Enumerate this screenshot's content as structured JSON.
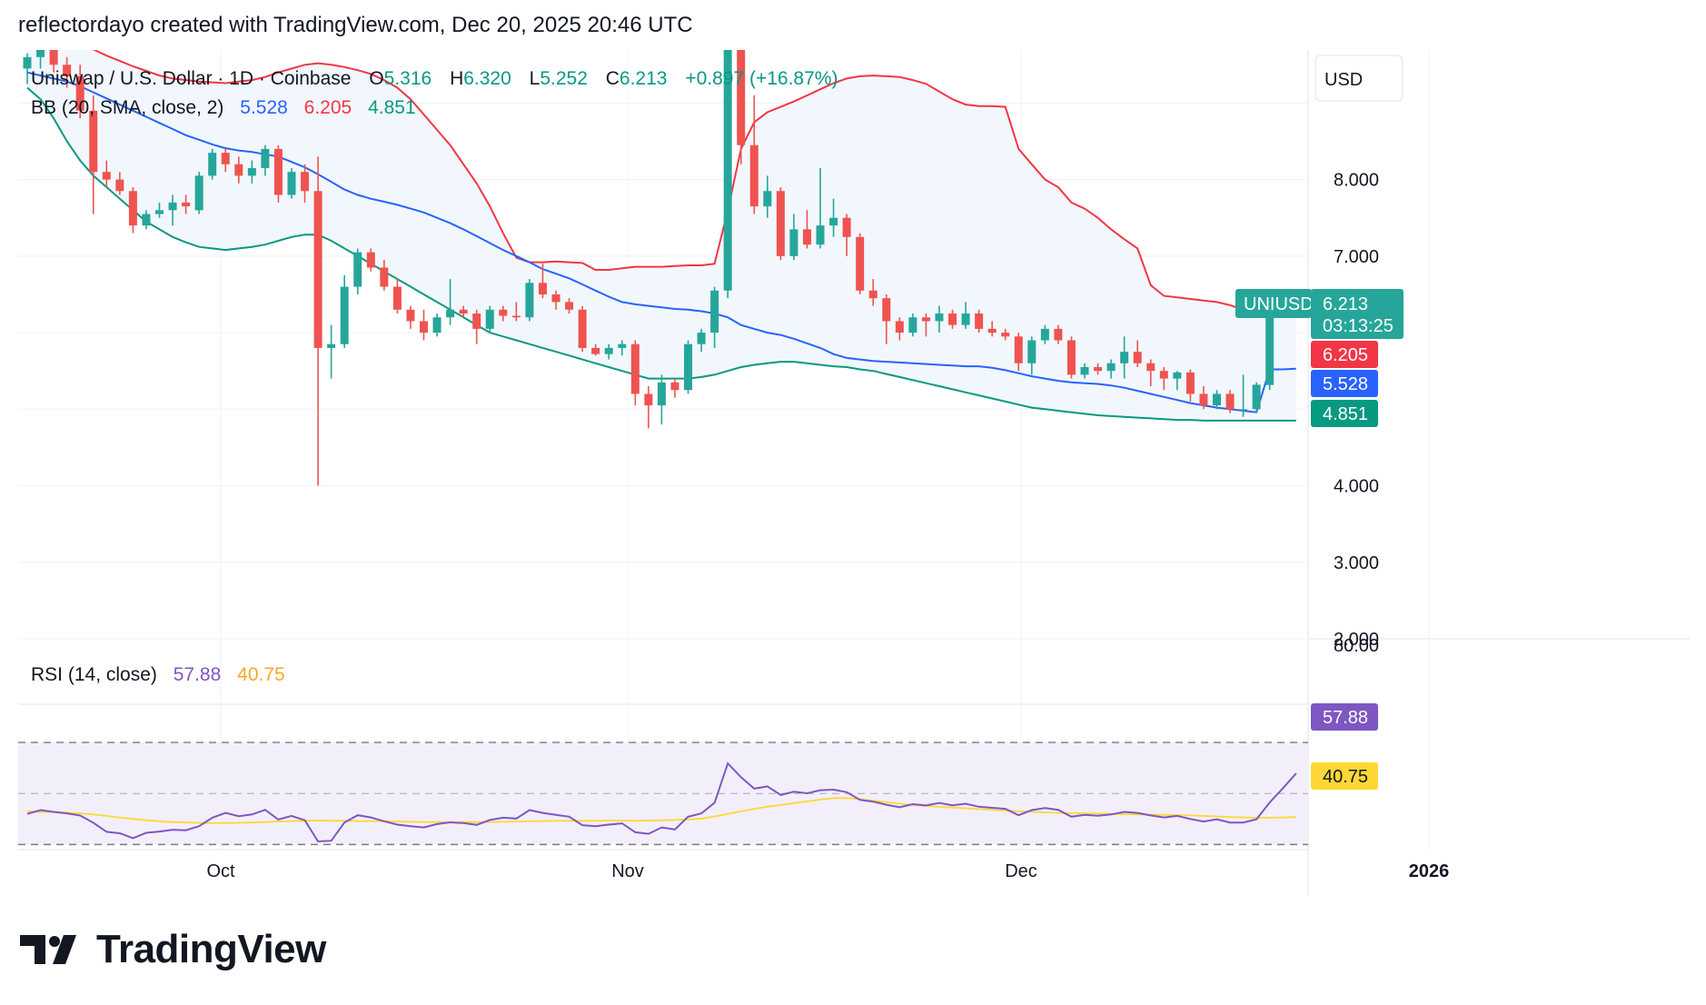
{
  "header": {
    "attribution": "reflectordayo created with TradingView.com, Dec 20, 2025 20:46 UTC"
  },
  "legend": {
    "symbol": "Uniswap / U.S. Dollar · 1D · Coinbase",
    "open_label": "O",
    "open": "5.316",
    "high_label": "H",
    "high": "6.320",
    "low_label": "L",
    "low": "5.252",
    "close_label": "C",
    "close": "6.213",
    "change": "+0.897 (+16.87%)",
    "bb_label": "BB (20, SMA, close, 2)",
    "bb_basis": "5.528",
    "bb_upper": "6.205",
    "bb_lower": "4.851",
    "rsi_label": "RSI (14, close)",
    "rsi_value": "57.88",
    "rsi_ma": "40.75"
  },
  "price_axis": {
    "currency": "USD",
    "ticks": [
      "8.000",
      "7.000",
      "4.000",
      "3.000",
      "2.000"
    ]
  },
  "rsi_axis": {
    "ticks": [
      "80.00"
    ]
  },
  "badges": {
    "symbol": "UNIUSD",
    "last_price": "6.213",
    "countdown": "03:13:25",
    "bb_upper": "6.205",
    "bb_basis": "5.528",
    "bb_lower": "4.851",
    "rsi": "57.88",
    "rsi_ma": "40.75"
  },
  "time_axis": {
    "labels": [
      "Oct",
      "Nov",
      "Dec",
      "2026"
    ]
  },
  "colors": {
    "up": "#26a69a",
    "down": "#ef5350",
    "bb_upper": "#f23645",
    "bb_basis": "#2962ff",
    "bb_lower": "#089981",
    "bb_fill": "#f1f7fd",
    "rsi": "#7e57c2",
    "rsi_ma": "#fdd835",
    "rsi_band": "#f3effa"
  },
  "brand": {
    "name": "TradingView"
  },
  "chart_data": {
    "type": "candlestick",
    "symbol": "UNIUSD",
    "ylim": [
      2,
      9.8
    ],
    "candles": [
      {
        "o": 9.45,
        "h": 9.65,
        "l": 9.25,
        "c": 9.6
      },
      {
        "o": 9.6,
        "h": 9.8,
        "l": 9.45,
        "c": 9.7
      },
      {
        "o": 9.7,
        "h": 9.85,
        "l": 9.4,
        "c": 9.5
      },
      {
        "o": 9.5,
        "h": 9.6,
        "l": 9.2,
        "c": 9.35
      },
      {
        "o": 9.35,
        "h": 9.5,
        "l": 8.8,
        "c": 8.9
      },
      {
        "o": 8.9,
        "h": 9.1,
        "l": 7.55,
        "c": 8.1
      },
      {
        "o": 8.1,
        "h": 8.25,
        "l": 7.9,
        "c": 8.0
      },
      {
        "o": 8.0,
        "h": 8.1,
        "l": 7.8,
        "c": 7.85
      },
      {
        "o": 7.85,
        "h": 7.9,
        "l": 7.3,
        "c": 7.4
      },
      {
        "o": 7.4,
        "h": 7.6,
        "l": 7.35,
        "c": 7.55
      },
      {
        "o": 7.55,
        "h": 7.7,
        "l": 7.5,
        "c": 7.6
      },
      {
        "o": 7.6,
        "h": 7.8,
        "l": 7.4,
        "c": 7.7
      },
      {
        "o": 7.7,
        "h": 7.8,
        "l": 7.55,
        "c": 7.65
      },
      {
        "o": 7.6,
        "h": 8.1,
        "l": 7.55,
        "c": 8.05
      },
      {
        "o": 8.05,
        "h": 8.4,
        "l": 8.0,
        "c": 8.35
      },
      {
        "o": 8.35,
        "h": 8.4,
        "l": 8.1,
        "c": 8.2
      },
      {
        "o": 8.2,
        "h": 8.3,
        "l": 7.95,
        "c": 8.05
      },
      {
        "o": 8.05,
        "h": 8.25,
        "l": 7.95,
        "c": 8.15
      },
      {
        "o": 8.15,
        "h": 8.45,
        "l": 8.05,
        "c": 8.4
      },
      {
        "o": 8.4,
        "h": 8.45,
        "l": 7.7,
        "c": 7.8
      },
      {
        "o": 7.8,
        "h": 8.15,
        "l": 7.75,
        "c": 8.1
      },
      {
        "o": 8.1,
        "h": 8.2,
        "l": 7.7,
        "c": 7.85
      },
      {
        "o": 7.85,
        "h": 8.3,
        "l": 4.0,
        "c": 5.8
      },
      {
        "o": 5.8,
        "h": 6.1,
        "l": 5.4,
        "c": 5.85
      },
      {
        "o": 5.85,
        "h": 6.75,
        "l": 5.8,
        "c": 6.6
      },
      {
        "o": 6.6,
        "h": 7.1,
        "l": 6.5,
        "c": 7.05
      },
      {
        "o": 7.05,
        "h": 7.1,
        "l": 6.8,
        "c": 6.85
      },
      {
        "o": 6.85,
        "h": 6.95,
        "l": 6.55,
        "c": 6.6
      },
      {
        "o": 6.6,
        "h": 6.7,
        "l": 6.25,
        "c": 6.3
      },
      {
        "o": 6.3,
        "h": 6.35,
        "l": 6.05,
        "c": 6.15
      },
      {
        "o": 6.15,
        "h": 6.3,
        "l": 5.9,
        "c": 6.0
      },
      {
        "o": 6.0,
        "h": 6.25,
        "l": 5.95,
        "c": 6.2
      },
      {
        "o": 6.2,
        "h": 6.7,
        "l": 6.1,
        "c": 6.3
      },
      {
        "o": 6.3,
        "h": 6.35,
        "l": 6.2,
        "c": 6.25
      },
      {
        "o": 6.25,
        "h": 6.3,
        "l": 5.85,
        "c": 6.05
      },
      {
        "o": 6.05,
        "h": 6.35,
        "l": 6.0,
        "c": 6.3
      },
      {
        "o": 6.3,
        "h": 6.35,
        "l": 6.15,
        "c": 6.22
      },
      {
        "o": 6.22,
        "h": 6.4,
        "l": 6.15,
        "c": 6.2
      },
      {
        "o": 6.2,
        "h": 6.7,
        "l": 6.15,
        "c": 6.65
      },
      {
        "o": 6.65,
        "h": 6.9,
        "l": 6.45,
        "c": 6.5
      },
      {
        "o": 6.5,
        "h": 6.55,
        "l": 6.3,
        "c": 6.4
      },
      {
        "o": 6.4,
        "h": 6.45,
        "l": 6.25,
        "c": 6.3
      },
      {
        "o": 6.3,
        "h": 6.35,
        "l": 5.75,
        "c": 5.8
      },
      {
        "o": 5.8,
        "h": 5.85,
        "l": 5.7,
        "c": 5.72
      },
      {
        "o": 5.72,
        "h": 5.85,
        "l": 5.65,
        "c": 5.8
      },
      {
        "o": 5.8,
        "h": 5.9,
        "l": 5.7,
        "c": 5.85
      },
      {
        "o": 5.85,
        "h": 5.9,
        "l": 5.05,
        "c": 5.2
      },
      {
        "o": 5.2,
        "h": 5.3,
        "l": 4.75,
        "c": 5.05
      },
      {
        "o": 5.05,
        "h": 5.45,
        "l": 4.8,
        "c": 5.35
      },
      {
        "o": 5.35,
        "h": 5.4,
        "l": 5.15,
        "c": 5.25
      },
      {
        "o": 5.25,
        "h": 5.9,
        "l": 5.2,
        "c": 5.85
      },
      {
        "o": 5.85,
        "h": 6.05,
        "l": 5.75,
        "c": 6.0
      },
      {
        "o": 6.0,
        "h": 6.6,
        "l": 5.8,
        "c": 6.55
      },
      {
        "o": 6.55,
        "h": 10.0,
        "l": 6.45,
        "c": 9.8
      },
      {
        "o": 9.8,
        "h": 10.0,
        "l": 8.2,
        "c": 8.45
      },
      {
        "o": 8.45,
        "h": 9.1,
        "l": 7.55,
        "c": 7.65
      },
      {
        "o": 7.65,
        "h": 8.05,
        "l": 7.5,
        "c": 7.85
      },
      {
        "o": 7.85,
        "h": 7.9,
        "l": 6.95,
        "c": 7.0
      },
      {
        "o": 7.0,
        "h": 7.55,
        "l": 6.95,
        "c": 7.35
      },
      {
        "o": 7.35,
        "h": 7.6,
        "l": 7.1,
        "c": 7.15
      },
      {
        "o": 7.15,
        "h": 8.15,
        "l": 7.1,
        "c": 7.4
      },
      {
        "o": 7.4,
        "h": 7.75,
        "l": 7.25,
        "c": 7.5
      },
      {
        "o": 7.5,
        "h": 7.55,
        "l": 7.0,
        "c": 7.25
      },
      {
        "o": 7.25,
        "h": 7.3,
        "l": 6.5,
        "c": 6.55
      },
      {
        "o": 6.55,
        "h": 6.7,
        "l": 6.35,
        "c": 6.45
      },
      {
        "o": 6.45,
        "h": 6.5,
        "l": 5.85,
        "c": 6.15
      },
      {
        "o": 6.15,
        "h": 6.2,
        "l": 5.9,
        "c": 6.0
      },
      {
        "o": 6.0,
        "h": 6.25,
        "l": 5.95,
        "c": 6.2
      },
      {
        "o": 6.2,
        "h": 6.25,
        "l": 5.95,
        "c": 6.15
      },
      {
        "o": 6.15,
        "h": 6.35,
        "l": 6.0,
        "c": 6.25
      },
      {
        "o": 6.25,
        "h": 6.3,
        "l": 6.05,
        "c": 6.1
      },
      {
        "o": 6.1,
        "h": 6.4,
        "l": 6.05,
        "c": 6.25
      },
      {
        "o": 6.25,
        "h": 6.3,
        "l": 6.0,
        "c": 6.05
      },
      {
        "o": 6.05,
        "h": 6.15,
        "l": 5.95,
        "c": 6.0
      },
      {
        "o": 6.0,
        "h": 6.05,
        "l": 5.9,
        "c": 5.95
      },
      {
        "o": 5.95,
        "h": 6.0,
        "l": 5.5,
        "c": 5.6
      },
      {
        "o": 5.6,
        "h": 5.95,
        "l": 5.45,
        "c": 5.9
      },
      {
        "o": 5.9,
        "h": 6.1,
        "l": 5.85,
        "c": 6.05
      },
      {
        "o": 6.05,
        "h": 6.1,
        "l": 5.85,
        "c": 5.9
      },
      {
        "o": 5.9,
        "h": 5.95,
        "l": 5.4,
        "c": 5.45
      },
      {
        "o": 5.45,
        "h": 5.6,
        "l": 5.4,
        "c": 5.55
      },
      {
        "o": 5.55,
        "h": 5.6,
        "l": 5.45,
        "c": 5.5
      },
      {
        "o": 5.5,
        "h": 5.65,
        "l": 5.4,
        "c": 5.6
      },
      {
        "o": 5.6,
        "h": 5.95,
        "l": 5.4,
        "c": 5.75
      },
      {
        "o": 5.75,
        "h": 5.9,
        "l": 5.55,
        "c": 5.6
      },
      {
        "o": 5.6,
        "h": 5.65,
        "l": 5.3,
        "c": 5.5
      },
      {
        "o": 5.5,
        "h": 5.55,
        "l": 5.25,
        "c": 5.4
      },
      {
        "o": 5.4,
        "h": 5.5,
        "l": 5.25,
        "c": 5.48
      },
      {
        "o": 5.48,
        "h": 5.52,
        "l": 5.1,
        "c": 5.2
      },
      {
        "o": 5.2,
        "h": 5.3,
        "l": 5.0,
        "c": 5.05
      },
      {
        "o": 5.05,
        "h": 5.25,
        "l": 5.0,
        "c": 5.2
      },
      {
        "o": 5.2,
        "h": 5.25,
        "l": 4.95,
        "c": 5.0
      },
      {
        "o": 5.0,
        "h": 5.45,
        "l": 4.9,
        "c": 5.0
      },
      {
        "o": 5.0,
        "h": 5.35,
        "l": 4.95,
        "c": 5.32
      },
      {
        "o": 5.316,
        "h": 6.32,
        "l": 5.252,
        "c": 6.213
      }
    ],
    "bb_upper": [
      10.0,
      9.96,
      9.9,
      9.85,
      9.78,
      9.7,
      9.62,
      9.55,
      9.48,
      9.42,
      9.36,
      9.32,
      9.3,
      9.28,
      9.27,
      9.26,
      9.28,
      9.3,
      9.34,
      9.4,
      9.45,
      9.5,
      9.52,
      9.5,
      9.47,
      9.43,
      9.38,
      9.3,
      9.2,
      9.05,
      8.85,
      8.65,
      8.45,
      8.2,
      7.95,
      7.65,
      7.3,
      6.98,
      6.92,
      6.92,
      6.93,
      6.92,
      6.91,
      6.82,
      6.82,
      6.84,
      6.86,
      6.86,
      6.86,
      6.87,
      6.88,
      6.88,
      6.9,
      7.6,
      8.4,
      8.75,
      8.88,
      8.95,
      9.02,
      9.1,
      9.18,
      9.26,
      9.32,
      9.35,
      9.36,
      9.35,
      9.34,
      9.3,
      9.25,
      9.15,
      9.05,
      8.98,
      8.96,
      8.96,
      8.95,
      8.4,
      8.2,
      8.0,
      7.9,
      7.7,
      7.62,
      7.5,
      7.35,
      7.22,
      7.1,
      6.62,
      6.48,
      6.46,
      6.44,
      6.42,
      6.4,
      6.36,
      6.3,
      6.26,
      6.21,
      6.21,
      6.205
    ],
    "bb_basis": [
      9.4,
      9.36,
      9.32,
      9.28,
      9.22,
      9.14,
      9.06,
      8.98,
      8.9,
      8.82,
      8.74,
      8.66,
      8.58,
      8.52,
      8.46,
      8.41,
      8.38,
      8.36,
      8.33,
      8.3,
      8.23,
      8.16,
      8.07,
      7.97,
      7.87,
      7.8,
      7.75,
      7.71,
      7.67,
      7.62,
      7.57,
      7.5,
      7.43,
      7.35,
      7.26,
      7.17,
      7.08,
      7.0,
      6.92,
      6.83,
      6.77,
      6.71,
      6.63,
      6.55,
      6.47,
      6.4,
      6.37,
      6.35,
      6.33,
      6.31,
      6.3,
      6.28,
      6.25,
      6.2,
      6.1,
      6.05,
      6.0,
      5.97,
      5.92,
      5.86,
      5.8,
      5.72,
      5.67,
      5.65,
      5.63,
      5.62,
      5.61,
      5.6,
      5.59,
      5.58,
      5.57,
      5.56,
      5.56,
      5.54,
      5.51,
      5.47,
      5.43,
      5.4,
      5.37,
      5.35,
      5.34,
      5.33,
      5.31,
      5.28,
      5.24,
      5.2,
      5.16,
      5.12,
      5.08,
      5.05,
      5.02,
      5.0,
      4.98,
      4.96,
      5.52,
      5.52,
      5.528
    ],
    "bb_lower": [
      9.2,
      9.05,
      8.8,
      8.5,
      8.25,
      8.05,
      7.9,
      7.75,
      7.6,
      7.45,
      7.35,
      7.25,
      7.18,
      7.12,
      7.1,
      7.08,
      7.1,
      7.12,
      7.15,
      7.2,
      7.25,
      7.28,
      7.28,
      7.2,
      7.1,
      7.0,
      6.9,
      6.8,
      6.7,
      6.6,
      6.5,
      6.4,
      6.3,
      6.2,
      6.1,
      6.0,
      5.95,
      5.9,
      5.85,
      5.8,
      5.75,
      5.7,
      5.65,
      5.6,
      5.55,
      5.5,
      5.45,
      5.4,
      5.4,
      5.4,
      5.4,
      5.42,
      5.45,
      5.5,
      5.55,
      5.58,
      5.6,
      5.62,
      5.62,
      5.6,
      5.58,
      5.56,
      5.55,
      5.52,
      5.5,
      5.46,
      5.42,
      5.38,
      5.34,
      5.3,
      5.26,
      5.22,
      5.18,
      5.14,
      5.1,
      5.06,
      5.02,
      5.0,
      4.98,
      4.96,
      4.94,
      4.92,
      4.91,
      4.9,
      4.89,
      4.88,
      4.87,
      4.86,
      4.86,
      4.85,
      4.85,
      4.85,
      4.85,
      4.851,
      4.851,
      4.851,
      4.851
    ],
    "rsi": [
      42,
      43.5,
      42.8,
      42.2,
      41.4,
      38.5,
      35,
      34.4,
      32.5,
      34.6,
      35.1,
      35.8,
      35.6,
      37.2,
      40.5,
      42.4,
      41.1,
      41.8,
      43.6,
      39.8,
      41.2,
      39.5,
      31.2,
      31.5,
      38.6,
      41.5,
      40.6,
      39.1,
      37.8,
      37.2,
      36.7,
      38,
      38.7,
      38.4,
      37.7,
      39.6,
      40.5,
      40.2,
      43.5,
      42.4,
      41.6,
      40.9,
      37.6,
      37.2,
      37.8,
      38.3,
      34.8,
      34.2,
      36.7,
      35.9,
      40.9,
      42.2,
      46.4,
      61.8,
      56.4,
      51.9,
      52.8,
      49.4,
      50.7,
      50.1,
      51.3,
      51.5,
      50.5,
      47.5,
      46.8,
      45.6,
      44.6,
      45.8,
      45.3,
      46.3,
      45.4,
      46,
      44.8,
      44.4,
      44,
      41.5,
      43.5,
      44.3,
      43.6,
      40.9,
      41.6,
      41.3,
      41.8,
      42.8,
      42.4,
      41.4,
      40.6,
      41.2,
      40,
      39,
      39.9,
      38.6,
      38.6,
      39.9,
      46.5,
      52.1,
      57.88
    ],
    "rsi_ma": [
      43,
      42.8,
      42.7,
      42.5,
      42.2,
      41.8,
      41.2,
      40.6,
      40.0,
      39.5,
      39.1,
      38.8,
      38.6,
      38.5,
      38.4,
      38.4,
      38.5,
      38.6,
      38.8,
      39.0,
      39.2,
      39.3,
      39.4,
      39.3,
      39.3,
      39.2,
      39.2,
      39.1,
      39.0,
      38.9,
      38.8,
      38.8,
      38.8,
      38.8,
      38.8,
      38.8,
      38.9,
      39.0,
      39.1,
      39.2,
      39.3,
      39.3,
      39.3,
      39.3,
      39.4,
      39.4,
      39.3,
      39.4,
      39.5,
      39.6,
      39.8,
      40.2,
      41.0,
      42.0,
      43.0,
      44.0,
      44.8,
      45.5,
      46.2,
      46.9,
      47.6,
      48.2,
      48.2,
      47.8,
      47.2,
      46.6,
      46.0,
      45.5,
      45.1,
      44.8,
      44.5,
      44.2,
      43.9,
      43.6,
      43.3,
      43.0,
      42.8,
      42.6,
      42.4,
      42.3,
      42.2,
      42.1,
      42.0,
      41.9,
      41.8,
      41.7,
      41.6,
      41.5,
      41.4,
      41.2,
      41.0,
      40.8,
      40.6,
      40.5,
      40.5,
      40.6,
      40.75
    ],
    "rsi_ylim": [
      28,
      85
    ],
    "rsi_levels": [
      70,
      50,
      30
    ]
  }
}
